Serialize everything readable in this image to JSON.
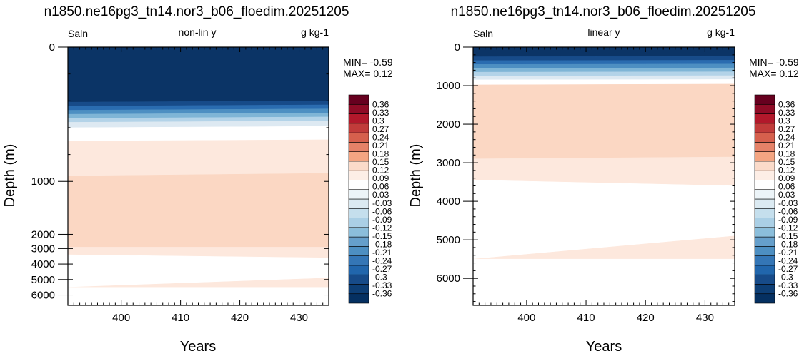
{
  "palette": {
    "colors": [
      "#053061",
      "#0d3e75",
      "#174b89",
      "#2166ac",
      "#3476b6",
      "#4d8fc2",
      "#659fcb",
      "#8bbedb",
      "#aacfe5",
      "#c5dfed",
      "#dbeaf2",
      "#ecf4f8",
      "#ffffff",
      "#fdeee6",
      "#fbdbca",
      "#f4a582",
      "#e58268",
      "#d6604d",
      "#c13b3a",
      "#b2182b",
      "#8f0b26",
      "#67001f"
    ],
    "levels": [
      "0.36",
      "0.33",
      "0.3",
      "0.27",
      "0.24",
      "0.21",
      "0.18",
      "0.15",
      "0.12",
      "0.09",
      "0.06",
      "0.03",
      "-0.03",
      "-0.06",
      "-0.09",
      "-0.12",
      "-0.15",
      "-0.18",
      "-0.21",
      "-0.24",
      "-0.27",
      "-0.3",
      "-0.33",
      "-0.36"
    ]
  },
  "chart_data": [
    {
      "type": "heatmap",
      "title": "n1850.ne16pg3_tn14.nor3_b06_floedim.20251205",
      "left_label": "Saln",
      "center_label": "non-lin y",
      "right_label": "g kg-1",
      "xlabel": "Years",
      "ylabel": "Depth (m)",
      "xlim": [
        391,
        435
      ],
      "ylim": [
        0,
        6500
      ],
      "y_scale": "non-linear",
      "xticks": [
        "400",
        "410",
        "420",
        "430"
      ],
      "yticks": [
        "0",
        "1000",
        "2000",
        "3000",
        "4000",
        "5000",
        "6000"
      ],
      "min_text": "MIN= -0.59",
      "max_text": "MAX=  0.12",
      "bands": [
        {
          "level": "below -0.36",
          "color": "#0b3466",
          "top": [
            0,
            0
          ],
          "bottom": [
            410,
            400
          ]
        },
        {
          "level": "-0.36",
          "color": "#174b89",
          "top": [
            410,
            400
          ],
          "bottom": [
            440,
            430
          ]
        },
        {
          "level": "-0.30",
          "color": "#2a6cb0",
          "top": [
            440,
            430
          ],
          "bottom": [
            470,
            460
          ]
        },
        {
          "level": "-0.24",
          "color": "#4d8fc2",
          "top": [
            470,
            460
          ],
          "bottom": [
            500,
            490
          ]
        },
        {
          "level": "-0.18",
          "color": "#7fb5d6",
          "top": [
            500,
            490
          ],
          "bottom": [
            530,
            520
          ]
        },
        {
          "level": "-0.12",
          "color": "#b3d3e8",
          "top": [
            530,
            520
          ],
          "bottom": [
            560,
            550
          ]
        },
        {
          "level": "-0.06",
          "color": "#dde9f2",
          "top": [
            560,
            550
          ],
          "bottom": [
            600,
            590
          ]
        },
        {
          "level": "0.00",
          "color": "#ffffff",
          "top": [
            600,
            590
          ],
          "bottom": [
            700,
            690
          ]
        },
        {
          "level": "0.03",
          "color": "#fde8dd",
          "top": [
            700,
            690
          ],
          "bottom": [
            960,
            940
          ]
        },
        {
          "level": "0.09",
          "color": "#fbd7c3",
          "top": [
            960,
            940
          ],
          "bottom": [
            2900,
            2900
          ]
        },
        {
          "level": "0.03",
          "color": "#fde8dd",
          "top": [
            2900,
            2900
          ],
          "bottom": [
            3400,
            3600
          ]
        },
        {
          "level": "0.00",
          "color": "#ffffff",
          "top": [
            3400,
            3600
          ],
          "bottom": [
            5500,
            4900
          ]
        },
        {
          "level": "0.03",
          "color": "#fde8dd",
          "top": [
            5500,
            4900
          ],
          "bottom": [
            5500,
            5500
          ]
        },
        {
          "level": "0.00",
          "color": "#ffffff",
          "top": [
            5500,
            5500
          ],
          "bottom": [
            6500,
            6500
          ]
        }
      ]
    },
    {
      "type": "heatmap",
      "title": "n1850.ne16pg3_tn14.nor3_b06_floedim.20251205",
      "left_label": "Saln",
      "center_label": "linear y",
      "right_label": "g kg-1",
      "xlabel": "Years",
      "ylabel": "Depth (m)",
      "xlim": [
        391,
        435
      ],
      "ylim": [
        0,
        6700
      ],
      "y_scale": "linear",
      "xticks": [
        "400",
        "410",
        "420",
        "430"
      ],
      "yticks": [
        "0",
        "1000",
        "2000",
        "3000",
        "4000",
        "5000",
        "6000"
      ],
      "min_text": "MIN= -0.59",
      "max_text": "MAX=  0.12",
      "bands": [
        {
          "level": "below -0.36",
          "color": "#0b3466",
          "top": [
            0,
            0
          ],
          "bottom": [
            250,
            240
          ]
        },
        {
          "level": "-0.36",
          "color": "#174b89",
          "top": [
            250,
            240
          ],
          "bottom": [
            350,
            340
          ]
        },
        {
          "level": "-0.30",
          "color": "#2a6cb0",
          "top": [
            350,
            340
          ],
          "bottom": [
            450,
            440
          ]
        },
        {
          "level": "-0.24",
          "color": "#4d8fc2",
          "top": [
            450,
            440
          ],
          "bottom": [
            550,
            540
          ]
        },
        {
          "level": "-0.18",
          "color": "#7fb5d6",
          "top": [
            550,
            540
          ],
          "bottom": [
            650,
            640
          ]
        },
        {
          "level": "-0.12",
          "color": "#b3d3e8",
          "top": [
            650,
            640
          ],
          "bottom": [
            750,
            740
          ]
        },
        {
          "level": "-0.06",
          "color": "#dde9f2",
          "top": [
            750,
            740
          ],
          "bottom": [
            850,
            840
          ]
        },
        {
          "level": "0.00",
          "color": "#ffffff",
          "top": [
            850,
            840
          ],
          "bottom": [
            980,
            960
          ]
        },
        {
          "level": "0.09",
          "color": "#fbd7c3",
          "top": [
            980,
            960
          ],
          "bottom": [
            2900,
            2850
          ]
        },
        {
          "level": "0.03",
          "color": "#fde8dd",
          "top": [
            2900,
            2850
          ],
          "bottom": [
            3450,
            3600
          ]
        },
        {
          "level": "0.00",
          "color": "#ffffff",
          "top": [
            3450,
            3600
          ],
          "bottom": [
            5500,
            4900
          ]
        },
        {
          "level": "0.03",
          "color": "#fde8dd",
          "top": [
            5500,
            4900
          ],
          "bottom": [
            5500,
            5500
          ]
        },
        {
          "level": "0.00",
          "color": "#ffffff",
          "top": [
            5500,
            5500
          ],
          "bottom": [
            6700,
            6700
          ]
        }
      ]
    }
  ]
}
